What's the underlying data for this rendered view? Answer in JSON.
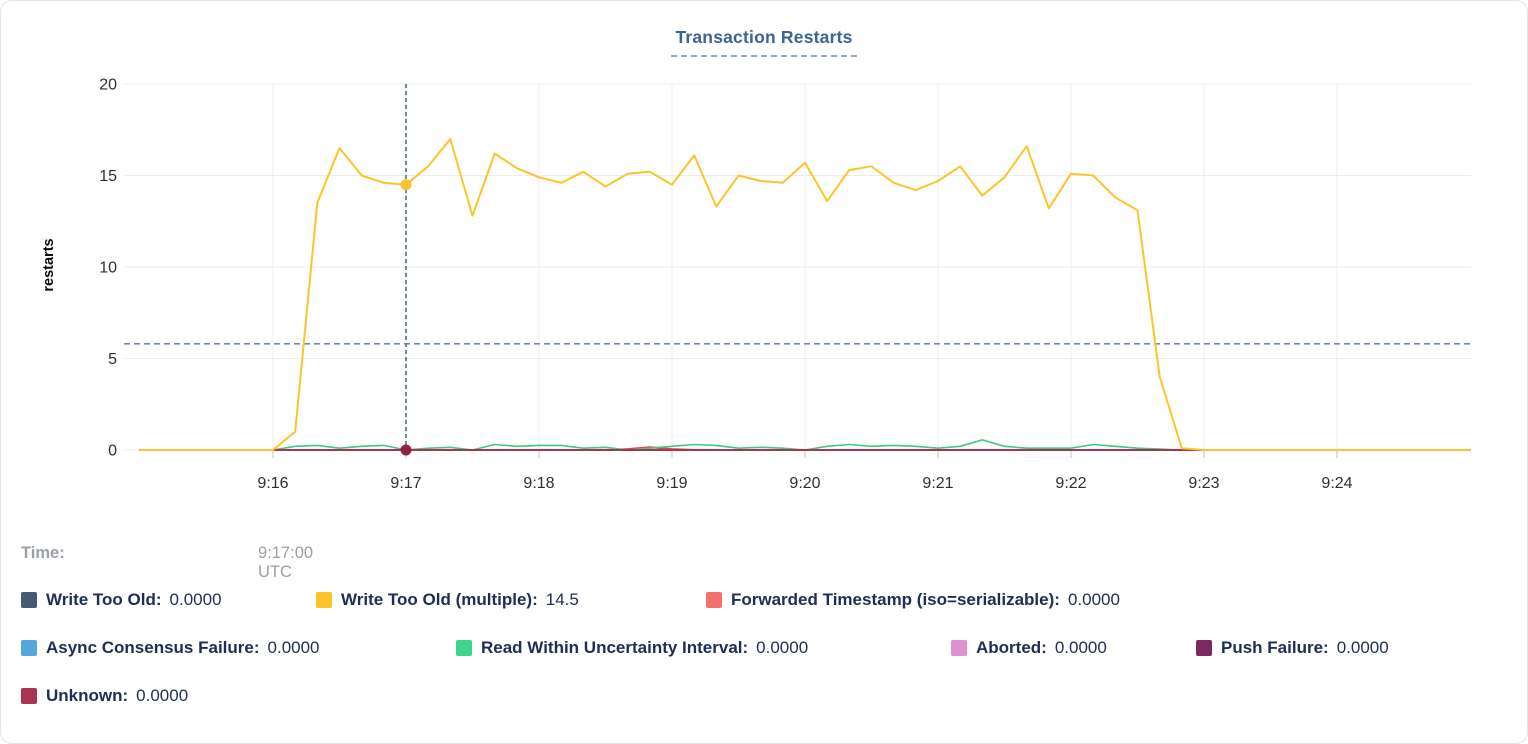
{
  "title": "Transaction Restarts",
  "title_color": "#3c6490",
  "tooltip": {
    "time_label": "Time:",
    "time_value": "9:17:00 UTC"
  },
  "legend": {
    "rows": [
      [
        {
          "label": "Write Too Old:",
          "value": "0.0000",
          "color": "#475a74"
        },
        {
          "label": "Write Too Old (multiple):",
          "value": "14.5",
          "color": "#fdc42a"
        },
        {
          "label": "Forwarded Timestamp (iso=serializable):",
          "value": "0.0000",
          "color": "#f2726b"
        }
      ],
      [
        {
          "label": "Async Consensus Failure:",
          "value": "0.0000",
          "color": "#54a7dc"
        },
        {
          "label": "Read Within Uncertainty Interval:",
          "value": "0.0000",
          "color": "#3dd58c"
        },
        {
          "label": "Aborted:",
          "value": "0.0000",
          "color": "#e08fd0"
        },
        {
          "label": "Push Failure:",
          "value": "0.0000",
          "color": "#7d2a63"
        }
      ],
      [
        {
          "label": "Unknown:",
          "value": "0.0000",
          "color": "#a93350"
        }
      ]
    ]
  },
  "chart_data": {
    "type": "line",
    "title": "Transaction Restarts",
    "xlabel": "",
    "ylabel": "restarts",
    "ylim": [
      0,
      20
    ],
    "yticks": [
      "0",
      "5",
      "10",
      "15",
      "20"
    ],
    "xticks": [
      "9:16",
      "9:17",
      "9:18",
      "9:19",
      "9:20",
      "9:21",
      "9:22",
      "9:23",
      "9:24"
    ],
    "x_domain": [
      "9:15:00",
      "9:25:00"
    ],
    "grid": true,
    "legend_position": "bottom",
    "crosshair": {
      "x": "9:17:00",
      "y_value": 5.8,
      "vline_color": "#2f5a68",
      "hline_color": "#587a9b"
    },
    "hover_points": [
      {
        "series": "Write Too Old (multiple)",
        "x": "9:17:00",
        "y": 14.5,
        "color": "#fdc42a"
      },
      {
        "series": "Unknown",
        "x": "9:17:00",
        "y": 0,
        "color": "#8e2443"
      }
    ],
    "series": [
      {
        "name": "Write Too Old",
        "color": "#475a74",
        "x": [
          "9:15:00",
          "9:25:00"
        ],
        "values": [
          0,
          0
        ]
      },
      {
        "name": "Async Consensus Failure",
        "color": "#54a7dc",
        "x": [
          "9:15:00",
          "9:25:00"
        ],
        "values": [
          0,
          0
        ]
      },
      {
        "name": "Aborted",
        "color": "#e08fd0",
        "x": [
          "9:15:00",
          "9:25:00"
        ],
        "values": [
          0,
          0
        ]
      },
      {
        "name": "Push Failure",
        "color": "#7d2a63",
        "x": [
          "9:15:00",
          "9:25:00"
        ],
        "values": [
          0,
          0
        ]
      },
      {
        "name": "Forwarded Timestamp (iso=serializable)",
        "color": "#dd4450",
        "x": [
          "9:15:00",
          "9:18:30",
          "9:18:40",
          "9:18:50",
          "9:19:00",
          "9:19:10",
          "9:25:00"
        ],
        "values": [
          0,
          0,
          0.05,
          0.15,
          0.05,
          0,
          0
        ]
      },
      {
        "name": "Read Within Uncertainty Interval",
        "color": "#3acb86",
        "x": [
          "9:15:00",
          "9:16:00",
          "9:16:10",
          "9:16:20",
          "9:16:30",
          "9:16:40",
          "9:16:50",
          "9:17:00",
          "9:17:10",
          "9:17:20",
          "9:17:30",
          "9:17:40",
          "9:17:50",
          "9:18:00",
          "9:18:10",
          "9:18:20",
          "9:18:30",
          "9:18:40",
          "9:18:50",
          "9:19:00",
          "9:19:10",
          "9:19:20",
          "9:19:30",
          "9:19:40",
          "9:19:50",
          "9:20:00",
          "9:20:10",
          "9:20:20",
          "9:20:30",
          "9:20:40",
          "9:20:50",
          "9:21:00",
          "9:21:10",
          "9:21:20",
          "9:21:30",
          "9:21:40",
          "9:21:50",
          "9:22:00",
          "9:22:10",
          "9:22:20",
          "9:22:30",
          "9:22:40",
          "9:22:50",
          "9:23:00",
          "9:25:00"
        ],
        "values": [
          0,
          0,
          0.2,
          0.25,
          0.1,
          0.2,
          0.25,
          0,
          0.1,
          0.15,
          0,
          0.3,
          0.2,
          0.25,
          0.25,
          0.1,
          0.15,
          0,
          0.1,
          0.2,
          0.3,
          0.25,
          0.1,
          0.15,
          0.1,
          0,
          0.2,
          0.3,
          0.2,
          0.25,
          0.2,
          0.1,
          0.2,
          0.55,
          0.2,
          0.1,
          0.1,
          0.1,
          0.3,
          0.2,
          0.1,
          0.05,
          0,
          0,
          0
        ]
      },
      {
        "name": "Unknown",
        "color": "#a93350",
        "x": [
          "9:15:00",
          "9:25:00"
        ],
        "values": [
          0,
          0
        ]
      },
      {
        "name": "Write Too Old (multiple)",
        "color": "#fdc42a",
        "x": [
          "9:15:00",
          "9:16:00",
          "9:16:10",
          "9:16:20",
          "9:16:30",
          "9:16:40",
          "9:16:50",
          "9:17:00",
          "9:17:10",
          "9:17:20",
          "9:17:30",
          "9:17:40",
          "9:17:50",
          "9:18:00",
          "9:18:10",
          "9:18:20",
          "9:18:30",
          "9:18:40",
          "9:18:50",
          "9:19:00",
          "9:19:10",
          "9:19:20",
          "9:19:30",
          "9:19:40",
          "9:19:50",
          "9:20:00",
          "9:20:10",
          "9:20:20",
          "9:20:30",
          "9:20:40",
          "9:20:50",
          "9:21:00",
          "9:21:10",
          "9:21:20",
          "9:21:30",
          "9:21:40",
          "9:21:50",
          "9:22:00",
          "9:22:10",
          "9:22:20",
          "9:22:30",
          "9:22:40",
          "9:22:50",
          "9:23:00",
          "9:25:00"
        ],
        "values": [
          0,
          0,
          1.0,
          13.5,
          16.5,
          15.0,
          14.6,
          14.5,
          15.5,
          17.0,
          12.8,
          16.2,
          15.4,
          14.9,
          14.6,
          15.2,
          14.4,
          15.1,
          15.2,
          14.5,
          16.1,
          13.3,
          15.0,
          14.7,
          14.6,
          15.7,
          13.6,
          15.3,
          15.5,
          14.6,
          14.2,
          14.7,
          15.5,
          13.9,
          14.9,
          16.6,
          13.2,
          15.1,
          15.0,
          13.8,
          13.1,
          4.0,
          0.1,
          0,
          0
        ]
      }
    ]
  }
}
